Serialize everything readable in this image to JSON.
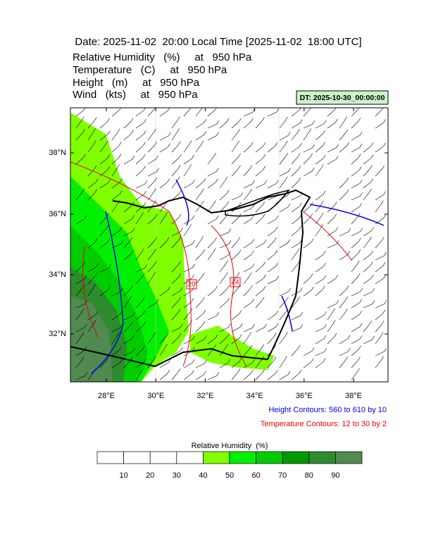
{
  "header": {
    "title": "Date: 2025-11-02  20:00 Local Time [2025-11-02  18:00 UTC]",
    "fields": [
      "Relative Humidity   (%)     at   950 hPa",
      "Temperature   (C)     at   950 hPa",
      "Height   (m)     at   950 hPa",
      "Wind   (kts)     at   950 hPa"
    ],
    "dt": "DT: 2025-10-30_00:00:00"
  },
  "map": {
    "lat_labels": [
      "38°N",
      "36°N",
      "34°N",
      "32°N"
    ],
    "lon_labels": [
      "28°E",
      "30°E",
      "32°E",
      "34°E",
      "36°E",
      "38°E"
    ],
    "contour_labels": [
      "20",
      "24"
    ]
  },
  "notes": {
    "height": "Height Contours: 560 to 610 by 10",
    "temperature": "Temperature Contours: 12 to 30 by 2"
  },
  "colorbar": {
    "title": "Relative Humidity  (%)",
    "labels": [
      10,
      20,
      30,
      40,
      50,
      60,
      70,
      80,
      90
    ],
    "colors": [
      "#ffffff",
      "#ffffff",
      "#ffffff",
      "#ffffff",
      "#80ff00",
      "#00f000",
      "#00cc00",
      "#009900",
      "#2e8b2e",
      "#508a50"
    ]
  }
}
